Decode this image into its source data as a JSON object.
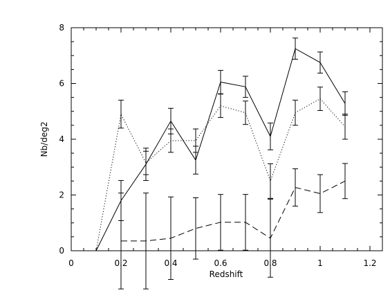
{
  "chart_data": {
    "type": "line",
    "xlabel": "Redshift",
    "ylabel": "Nb/deg2",
    "xlim": [
      0,
      1.25
    ],
    "ylim": [
      0,
      8
    ],
    "x_ticks": [
      0,
      0.2,
      0.4,
      0.6,
      0.8,
      1,
      1.2
    ],
    "x_tick_labels": [
      "0",
      "0.2",
      "0.4",
      "0.6",
      "0.8",
      "1",
      "1.2"
    ],
    "y_ticks": [
      0,
      2,
      4,
      6,
      8
    ],
    "y_tick_labels": [
      "0",
      "2",
      "4",
      "6",
      "8"
    ],
    "grid": false,
    "series": [
      {
        "style": "solid",
        "x": [
          0,
          0.1,
          0.2,
          0.3,
          0.4,
          0.5,
          0.6,
          0.7,
          0.8,
          0.9,
          1.0,
          1.1
        ],
        "y": [
          0,
          0,
          1.8,
          3.1,
          4.65,
          3.25,
          6.05,
          5.88,
          4.1,
          7.25,
          6.75,
          5.28
        ],
        "err": [
          null,
          null,
          0.72,
          0.58,
          0.46,
          0.5,
          0.42,
          0.38,
          0.48,
          0.38,
          0.38,
          0.42
        ]
      },
      {
        "style": "dotted",
        "x": [
          0.1,
          0.2,
          0.3,
          0.4,
          0.5,
          0.6,
          0.7,
          0.8,
          0.9,
          1.0,
          1.1
        ],
        "y": [
          0,
          4.9,
          3.15,
          3.95,
          3.95,
          5.2,
          4.95,
          2.5,
          4.95,
          5.45,
          4.45
        ],
        "err": [
          null,
          0.5,
          0.42,
          0.42,
          0.42,
          0.42,
          0.42,
          0.62,
          0.45,
          0.42,
          0.45
        ]
      },
      {
        "style": "dashed",
        "x": [
          0.2,
          0.3,
          0.4,
          0.5,
          0.6,
          0.7,
          0.8,
          0.9,
          1.0,
          1.1
        ],
        "y": [
          0.35,
          0.35,
          0.45,
          0.8,
          1.02,
          1.02,
          0.45,
          2.27,
          2.05,
          2.5
        ],
        "err": [
          1.72,
          1.72,
          1.48,
          1.1,
          1.0,
          1.0,
          1.4,
          0.67,
          0.68,
          0.63
        ]
      }
    ]
  }
}
